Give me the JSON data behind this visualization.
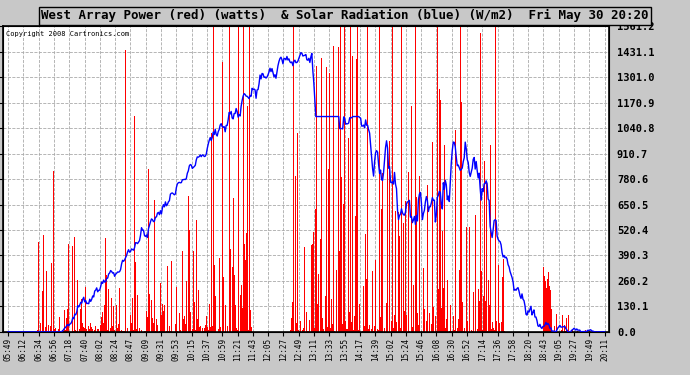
{
  "title": "West Array Power (red) (watts)  & Solar Radiation (blue) (W/m2)  Fri May 30 20:20",
  "copyright": "Copyright 2008 Cartronics.com",
  "background_color": "#c8c8c8",
  "plot_bg_color": "#ffffff",
  "grid_color": "#aaaaaa",
  "title_fontsize": 9,
  "ymax": 1561.2,
  "ymin": 0.0,
  "ytick_labels": [
    "0.0",
    "130.1",
    "260.2",
    "390.3",
    "520.4",
    "650.5",
    "780.6",
    "910.7",
    "1040.8",
    "1170.9",
    "1301.0",
    "1431.1",
    "1561.2"
  ],
  "ytick_values": [
    0.0,
    130.1,
    260.2,
    390.3,
    520.4,
    650.5,
    780.6,
    910.7,
    1040.8,
    1170.9,
    1301.0,
    1431.1,
    1561.2
  ],
  "xtick_labels": [
    "05:49",
    "06:12",
    "06:34",
    "06:56",
    "07:18",
    "07:40",
    "08:02",
    "08:24",
    "08:47",
    "09:09",
    "09:31",
    "09:53",
    "10:15",
    "10:37",
    "10:59",
    "11:21",
    "11:43",
    "12:05",
    "12:27",
    "12:49",
    "13:11",
    "13:33",
    "13:55",
    "14:17",
    "14:39",
    "15:02",
    "15:24",
    "15:46",
    "16:08",
    "16:30",
    "16:52",
    "17:14",
    "17:36",
    "17:58",
    "18:20",
    "18:43",
    "19:05",
    "19:27",
    "19:49",
    "20:11"
  ],
  "red_color": "#ff0000",
  "blue_color": "#0000ff",
  "n_points": 600
}
